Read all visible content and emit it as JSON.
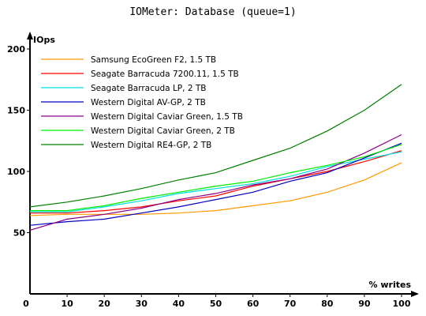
{
  "chart_data": {
    "type": "line",
    "title": "IOMeter: Database (queue=1)",
    "xlabel": "% writes",
    "ylabel": "IOps",
    "x": [
      0,
      10,
      20,
      30,
      40,
      50,
      60,
      70,
      80,
      90,
      100
    ],
    "x_ticks": [
      "0",
      "10",
      "20",
      "30",
      "40",
      "50",
      "60",
      "70",
      "80",
      "90",
      "100"
    ],
    "y_ticks": [
      "50",
      "100",
      "150",
      "200"
    ],
    "xlim": [
      0,
      100
    ],
    "ylim": [
      0,
      200
    ],
    "legend_position": "top-left",
    "grid": false,
    "series": [
      {
        "name": "Samsung EcoGreen F2, 1.5 TB",
        "color": "#ff9900",
        "values": [
          64,
          65,
          65,
          65,
          66,
          68,
          72,
          76,
          83,
          93,
          107
        ]
      },
      {
        "name": "Seagate Barracuda 7200.11, 1.5 TB",
        "color": "#ff0000",
        "values": [
          66,
          66,
          68,
          71,
          76,
          80,
          88,
          94,
          100,
          108,
          117
        ]
      },
      {
        "name": "Seagate Barracuda LP, 2 TB",
        "color": "#00e0e0",
        "values": [
          67,
          67,
          71,
          76,
          82,
          86,
          90,
          96,
          104,
          110,
          116
        ]
      },
      {
        "name": "Western Digital AV-GP, 2 TB",
        "color": "#0000c0",
        "values": [
          56,
          59,
          61,
          66,
          71,
          77,
          83,
          92,
          99,
          111,
          123
        ]
      },
      {
        "name": "Western Digital Caviar Green, 1.5 TB",
        "color": "#880088",
        "values": [
          52,
          61,
          65,
          70,
          77,
          82,
          89,
          94,
          102,
          115,
          130
        ]
      },
      {
        "name": "Western Digital Caviar Green, 2 TB",
        "color": "#00ee00",
        "values": [
          68,
          68,
          72,
          78,
          83,
          88,
          92,
          99,
          105,
          112,
          122
        ]
      },
      {
        "name": "Western Digital RE4-GP, 2 TB",
        "color": "#008000",
        "values": [
          71,
          75,
          80,
          86,
          93,
          99,
          109,
          119,
          133,
          150,
          171
        ]
      }
    ]
  }
}
